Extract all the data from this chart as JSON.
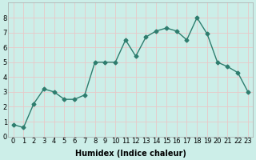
{
  "x": [
    0,
    1,
    2,
    3,
    4,
    5,
    6,
    7,
    8,
    9,
    10,
    11,
    12,
    13,
    14,
    15,
    16,
    17,
    18,
    19,
    20,
    21,
    22,
    23
  ],
  "y": [
    0.8,
    0.6,
    2.2,
    3.2,
    3.0,
    2.5,
    2.5,
    2.8,
    5.0,
    5.0,
    5.0,
    6.5,
    5.4,
    6.7,
    7.1,
    7.3,
    7.1,
    6.5,
    8.0,
    6.9,
    5.0,
    4.7,
    4.3,
    3.0
  ],
  "line_color": "#2e7d6e",
  "marker": "D",
  "marker_size": 2.5,
  "bg_color": "#cceee8",
  "grid_color": "#e8c8c8",
  "xlabel": "Humidex (Indice chaleur)",
  "xlim": [
    -0.5,
    23.5
  ],
  "ylim": [
    0,
    9
  ],
  "xticks": [
    0,
    1,
    2,
    3,
    4,
    5,
    6,
    7,
    8,
    9,
    10,
    11,
    12,
    13,
    14,
    15,
    16,
    17,
    18,
    19,
    20,
    21,
    22,
    23
  ],
  "yticks": [
    0,
    1,
    2,
    3,
    4,
    5,
    6,
    7,
    8
  ],
  "xlabel_fontsize": 7,
  "tick_fontsize": 6,
  "linewidth": 1.0
}
